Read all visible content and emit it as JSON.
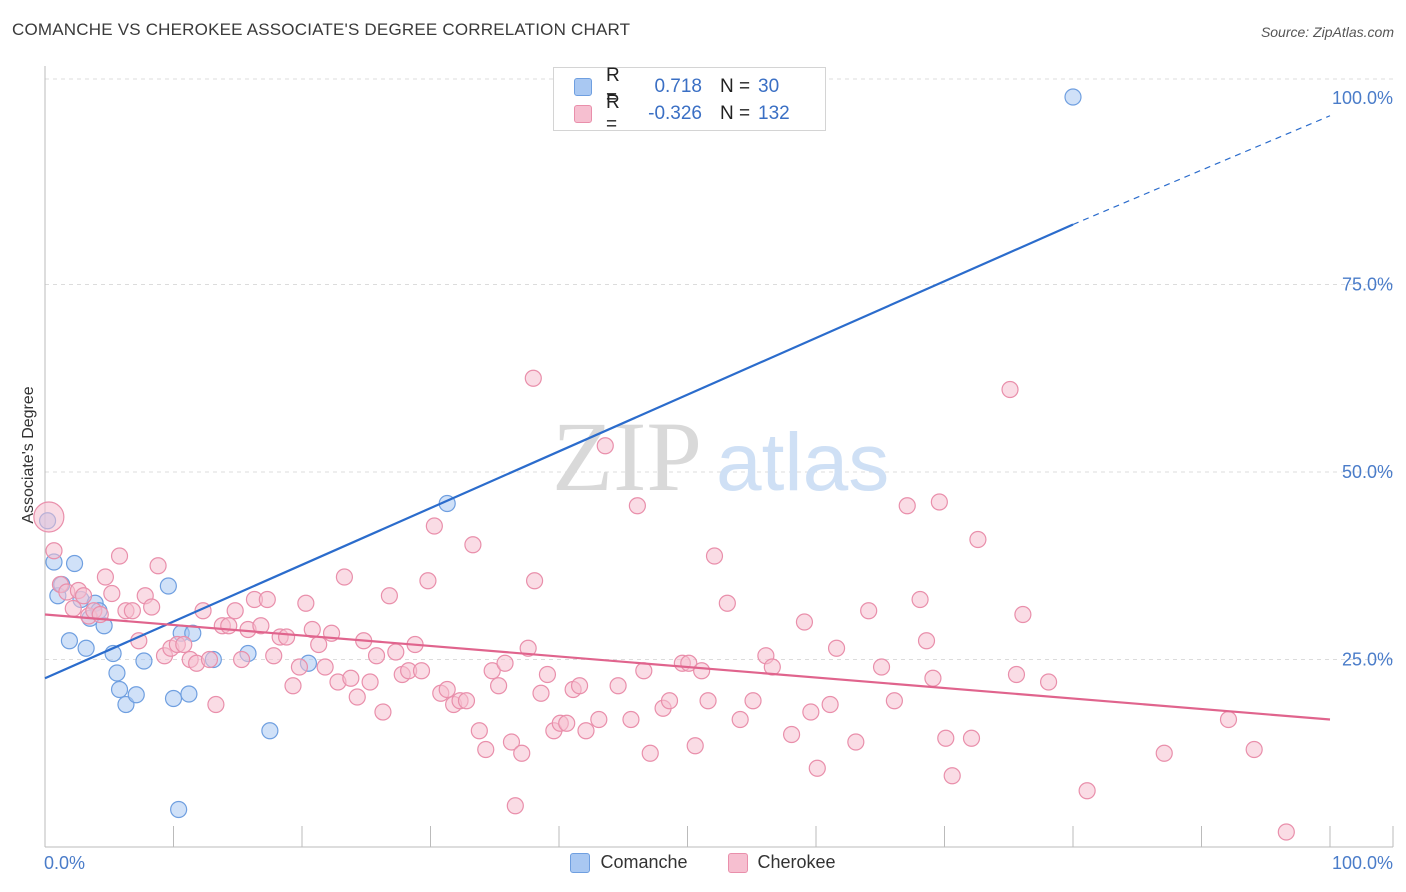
{
  "title": "COMANCHE VS CHEROKEE ASSOCIATE'S DEGREE CORRELATION CHART",
  "source": "Source: ZipAtlas.com",
  "watermark": {
    "zip": "ZIP",
    "atlas": "atlas"
  },
  "legend": {
    "rows": [
      {
        "r_label": "R =",
        "r_value": "0.718",
        "n_label": "N =",
        "n_value": "30",
        "color": "#a9c8f2",
        "border": "#6f9fe0"
      },
      {
        "r_label": "R =",
        "r_value": "-0.326",
        "n_label": "N =",
        "n_value": "132",
        "color": "#f6bfd0",
        "border": "#e98fab"
      }
    ]
  },
  "bottom_legend": [
    {
      "label": "Comanche",
      "color": "#a9c8f2",
      "border": "#6f9fe0"
    },
    {
      "label": "Cherokee",
      "color": "#f6bfd0",
      "border": "#e98fab"
    }
  ],
  "chart_data": {
    "type": "scatter",
    "title": "COMANCHE VS CHEROKEE ASSOCIATE'S DEGREE CORRELATION CHART",
    "xlabel": "",
    "ylabel": "Associate's Degree",
    "xlim": [
      0,
      100
    ],
    "ylim": [
      0,
      100
    ],
    "x_tick_labels": [
      "0.0%",
      "100.0%"
    ],
    "y_ticks": [
      25,
      50,
      75,
      100
    ],
    "y_tick_labels": [
      "25.0%",
      "50.0%",
      "75.0%",
      "100.0%"
    ],
    "grid": true,
    "legend_position": "top-center",
    "series": [
      {
        "name": "Comanche",
        "color": "#6f9fe0",
        "fill": "#a9c8f2",
        "trend_color": "#2b6ccc",
        "trend": {
          "x0": 0,
          "y0": 22.5,
          "x1": 80,
          "y1": 83,
          "dash_to_x": 100,
          "dash_to_y": 97.5
        },
        "points": [
          [
            0.2,
            43.5
          ],
          [
            0.7,
            38.0
          ],
          [
            1.0,
            33.5
          ],
          [
            1.3,
            35.0
          ],
          [
            1.9,
            27.5
          ],
          [
            2.3,
            37.8
          ],
          [
            2.8,
            33.0
          ],
          [
            3.2,
            26.5
          ],
          [
            3.5,
            30.5
          ],
          [
            3.9,
            32.5
          ],
          [
            4.2,
            31.5
          ],
          [
            4.6,
            29.5
          ],
          [
            5.3,
            25.8
          ],
          [
            5.6,
            23.2
          ],
          [
            5.8,
            21.0
          ],
          [
            6.3,
            19.0
          ],
          [
            7.1,
            20.3
          ],
          [
            7.7,
            24.8
          ],
          [
            9.6,
            34.8
          ],
          [
            10.0,
            19.8
          ],
          [
            10.4,
            5.0
          ],
          [
            10.6,
            28.5
          ],
          [
            11.2,
            20.4
          ],
          [
            11.5,
            28.5
          ],
          [
            13.1,
            25.0
          ],
          [
            15.8,
            25.8
          ],
          [
            17.5,
            15.5
          ],
          [
            20.5,
            24.5
          ],
          [
            31.3,
            45.8
          ],
          [
            80.0,
            100.0
          ]
        ]
      },
      {
        "name": "Cherokee",
        "color": "#e98fab",
        "fill": "#f6bfd0",
        "trend_color": "#e0648d",
        "trend": {
          "x0": 0,
          "y0": 31.0,
          "x1": 100,
          "y1": 17.0
        },
        "points": [
          [
            0.3,
            44.0
          ],
          [
            0.7,
            39.5
          ],
          [
            1.2,
            35.0
          ],
          [
            1.7,
            34.0
          ],
          [
            2.2,
            31.8
          ],
          [
            2.6,
            34.2
          ],
          [
            3.0,
            33.5
          ],
          [
            3.4,
            30.8
          ],
          [
            3.8,
            31.5
          ],
          [
            4.3,
            31.0
          ],
          [
            4.7,
            36.0
          ],
          [
            5.2,
            33.8
          ],
          [
            5.8,
            38.8
          ],
          [
            6.3,
            31.5
          ],
          [
            6.8,
            31.5
          ],
          [
            7.3,
            27.5
          ],
          [
            7.8,
            33.5
          ],
          [
            8.3,
            32.0
          ],
          [
            8.8,
            37.5
          ],
          [
            9.3,
            25.5
          ],
          [
            9.8,
            26.5
          ],
          [
            10.3,
            27.0
          ],
          [
            10.8,
            27.0
          ],
          [
            11.3,
            25.0
          ],
          [
            11.8,
            24.5
          ],
          [
            12.3,
            31.5
          ],
          [
            12.8,
            25.0
          ],
          [
            13.3,
            19.0
          ],
          [
            13.8,
            29.5
          ],
          [
            14.3,
            29.5
          ],
          [
            14.8,
            31.5
          ],
          [
            15.3,
            25.0
          ],
          [
            15.8,
            29.0
          ],
          [
            16.3,
            33.0
          ],
          [
            16.8,
            29.5
          ],
          [
            17.3,
            33.0
          ],
          [
            17.8,
            25.5
          ],
          [
            18.3,
            28.0
          ],
          [
            18.8,
            28.0
          ],
          [
            19.3,
            21.5
          ],
          [
            19.8,
            24.0
          ],
          [
            20.3,
            32.5
          ],
          [
            20.8,
            29.0
          ],
          [
            21.3,
            27.0
          ],
          [
            21.8,
            24.0
          ],
          [
            22.3,
            28.5
          ],
          [
            22.8,
            22.0
          ],
          [
            23.3,
            36.0
          ],
          [
            23.8,
            22.5
          ],
          [
            24.3,
            20.0
          ],
          [
            24.8,
            27.5
          ],
          [
            25.3,
            22.0
          ],
          [
            25.8,
            25.5
          ],
          [
            26.3,
            18.0
          ],
          [
            26.8,
            33.5
          ],
          [
            27.3,
            26.0
          ],
          [
            27.8,
            23.0
          ],
          [
            28.3,
            23.5
          ],
          [
            28.8,
            27.0
          ],
          [
            29.3,
            23.5
          ],
          [
            29.8,
            35.5
          ],
          [
            30.3,
            42.8
          ],
          [
            30.8,
            20.5
          ],
          [
            31.3,
            21.0
          ],
          [
            31.8,
            19.0
          ],
          [
            32.3,
            19.5
          ],
          [
            32.8,
            19.5
          ],
          [
            33.3,
            40.3
          ],
          [
            33.8,
            15.5
          ],
          [
            34.3,
            13.0
          ],
          [
            34.8,
            23.5
          ],
          [
            35.3,
            21.5
          ],
          [
            35.8,
            24.5
          ],
          [
            36.3,
            14.0
          ],
          [
            36.6,
            5.5
          ],
          [
            37.1,
            12.5
          ],
          [
            37.6,
            26.5
          ],
          [
            38.1,
            35.5
          ],
          [
            38.6,
            20.5
          ],
          [
            38.0,
            62.5
          ],
          [
            39.1,
            23.0
          ],
          [
            39.6,
            15.5
          ],
          [
            40.1,
            16.5
          ],
          [
            40.6,
            16.5
          ],
          [
            41.1,
            21.0
          ],
          [
            41.6,
            21.5
          ],
          [
            42.1,
            15.5
          ],
          [
            43.1,
            17.0
          ],
          [
            43.6,
            53.5
          ],
          [
            44.6,
            21.5
          ],
          [
            45.6,
            17.0
          ],
          [
            46.1,
            45.5
          ],
          [
            46.6,
            23.5
          ],
          [
            47.1,
            12.5
          ],
          [
            48.1,
            18.5
          ],
          [
            48.6,
            19.5
          ],
          [
            49.6,
            24.5
          ],
          [
            50.1,
            24.5
          ],
          [
            50.6,
            13.5
          ],
          [
            51.1,
            23.5
          ],
          [
            51.6,
            19.5
          ],
          [
            52.1,
            38.8
          ],
          [
            53.1,
            32.5
          ],
          [
            54.1,
            17.0
          ],
          [
            55.1,
            19.5
          ],
          [
            56.1,
            25.5
          ],
          [
            56.6,
            24.0
          ],
          [
            58.1,
            15.0
          ],
          [
            59.1,
            30.0
          ],
          [
            59.6,
            18.0
          ],
          [
            60.1,
            10.5
          ],
          [
            61.1,
            19.0
          ],
          [
            61.6,
            26.5
          ],
          [
            63.1,
            14.0
          ],
          [
            64.1,
            31.5
          ],
          [
            65.1,
            24.0
          ],
          [
            66.1,
            19.5
          ],
          [
            67.1,
            45.5
          ],
          [
            68.1,
            33.0
          ],
          [
            68.6,
            27.5
          ],
          [
            69.1,
            22.5
          ],
          [
            69.6,
            46.0
          ],
          [
            70.1,
            14.5
          ],
          [
            70.6,
            9.5
          ],
          [
            72.1,
            14.5
          ],
          [
            72.6,
            41.0
          ],
          [
            75.1,
            61.0
          ],
          [
            75.6,
            23.0
          ],
          [
            76.1,
            31.0
          ],
          [
            78.1,
            22.0
          ],
          [
            81.1,
            7.5
          ],
          [
            87.1,
            12.5
          ],
          [
            92.1,
            17.0
          ],
          [
            94.1,
            13.0
          ],
          [
            96.6,
            2.0
          ]
        ]
      }
    ]
  }
}
